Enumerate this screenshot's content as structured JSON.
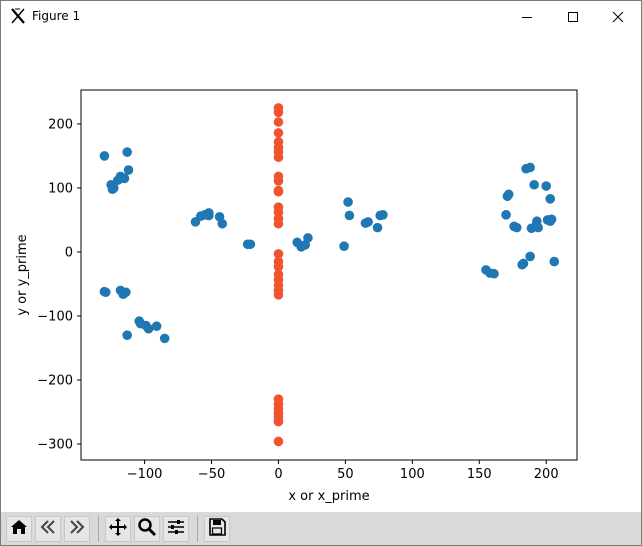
{
  "window": {
    "title": "Figure 1",
    "app_icon": "matplotlib-x-icon",
    "controls": [
      "minimize-icon",
      "maximize-icon",
      "close-icon"
    ]
  },
  "toolbar": {
    "buttons": [
      "home-icon",
      "back-icon",
      "forward-icon",
      "pan-icon",
      "zoom-icon",
      "configure-subplots-icon",
      "save-icon"
    ]
  },
  "colors": {
    "series_1": "#1f77b4",
    "series_2": "#f0532e"
  },
  "chart_data": {
    "type": "scatter",
    "title": "",
    "xlabel": "x or x_prime",
    "ylabel": "y or y_prime",
    "xlim": [
      -147.5,
      223
    ],
    "ylim": [
      -325,
      253
    ],
    "xticks": [
      -100,
      -50,
      0,
      50,
      100,
      150,
      200
    ],
    "yticks": [
      -300,
      -200,
      -100,
      0,
      100,
      200
    ],
    "xtick_labels": [
      "−100",
      "−50",
      "0",
      "50",
      "100",
      "150",
      "200"
    ],
    "ytick_labels": [
      "−300",
      "−200",
      "−100",
      "0",
      "100",
      "200"
    ],
    "grid": false,
    "legend": null,
    "series": [
      {
        "color": "#1f77b4",
        "points": [
          [
            -130,
            150
          ],
          [
            -113,
            156
          ],
          [
            -125,
            105
          ],
          [
            -120,
            112
          ],
          [
            -118,
            118
          ],
          [
            -115,
            115
          ],
          [
            -123,
            100
          ],
          [
            -112,
            128
          ],
          [
            -124,
            98
          ],
          [
            -62,
            47
          ],
          [
            -58,
            56
          ],
          [
            -55,
            58
          ],
          [
            -52,
            57
          ],
          [
            -52,
            61
          ],
          [
            -44,
            55
          ],
          [
            -42,
            44
          ],
          [
            -23,
            12
          ],
          [
            -21,
            12
          ],
          [
            14,
            15
          ],
          [
            17,
            8
          ],
          [
            20,
            11
          ],
          [
            22,
            22
          ],
          [
            49,
            9
          ],
          [
            52,
            78
          ],
          [
            53,
            57
          ],
          [
            65,
            45
          ],
          [
            67,
            47
          ],
          [
            74,
            38
          ],
          [
            76,
            57
          ],
          [
            78,
            58
          ],
          [
            -130,
            -62
          ],
          [
            -129,
            -63
          ],
          [
            -118,
            -60
          ],
          [
            -116,
            -66
          ],
          [
            -114,
            -63
          ],
          [
            -113,
            -130
          ],
          [
            -104,
            -108
          ],
          [
            -103,
            -112
          ],
          [
            -99,
            -115
          ],
          [
            -97,
            -120
          ],
          [
            -91,
            -116
          ],
          [
            -85,
            -135
          ],
          [
            155,
            -28
          ],
          [
            158,
            -33
          ],
          [
            161,
            -34
          ],
          [
            170,
            58
          ],
          [
            171,
            87
          ],
          [
            172,
            90
          ],
          [
            176,
            40
          ],
          [
            178,
            38
          ],
          [
            182,
            -20
          ],
          [
            183,
            -18
          ],
          [
            185,
            130
          ],
          [
            188,
            132
          ],
          [
            188,
            -7
          ],
          [
            189,
            37
          ],
          [
            191,
            105
          ],
          [
            192,
            40
          ],
          [
            193,
            48
          ],
          [
            194,
            38
          ],
          [
            200,
            103
          ],
          [
            201,
            50
          ],
          [
            203,
            48
          ],
          [
            203,
            83
          ],
          [
            204,
            51
          ],
          [
            206,
            -15
          ]
        ]
      },
      {
        "color": "#f0532e",
        "points": [
          [
            0,
            225
          ],
          [
            0,
            218
          ],
          [
            0,
            203
          ],
          [
            0,
            186
          ],
          [
            0,
            172
          ],
          [
            0,
            163
          ],
          [
            0,
            156
          ],
          [
            0,
            148
          ],
          [
            0,
            118
          ],
          [
            0,
            111
          ],
          [
            0,
            96
          ],
          [
            0,
            94
          ],
          [
            0,
            70
          ],
          [
            0,
            62
          ],
          [
            0,
            52
          ],
          [
            0,
            44
          ],
          [
            0,
            -3
          ],
          [
            0,
            -15
          ],
          [
            0,
            -23
          ],
          [
            0,
            -35
          ],
          [
            0,
            -43
          ],
          [
            0,
            -52
          ],
          [
            0,
            -60
          ],
          [
            0,
            -67
          ],
          [
            0,
            -230
          ],
          [
            0,
            -238
          ],
          [
            0,
            -245
          ],
          [
            0,
            -252
          ],
          [
            0,
            -258
          ],
          [
            0,
            -265
          ],
          [
            0,
            -296
          ]
        ]
      }
    ]
  }
}
